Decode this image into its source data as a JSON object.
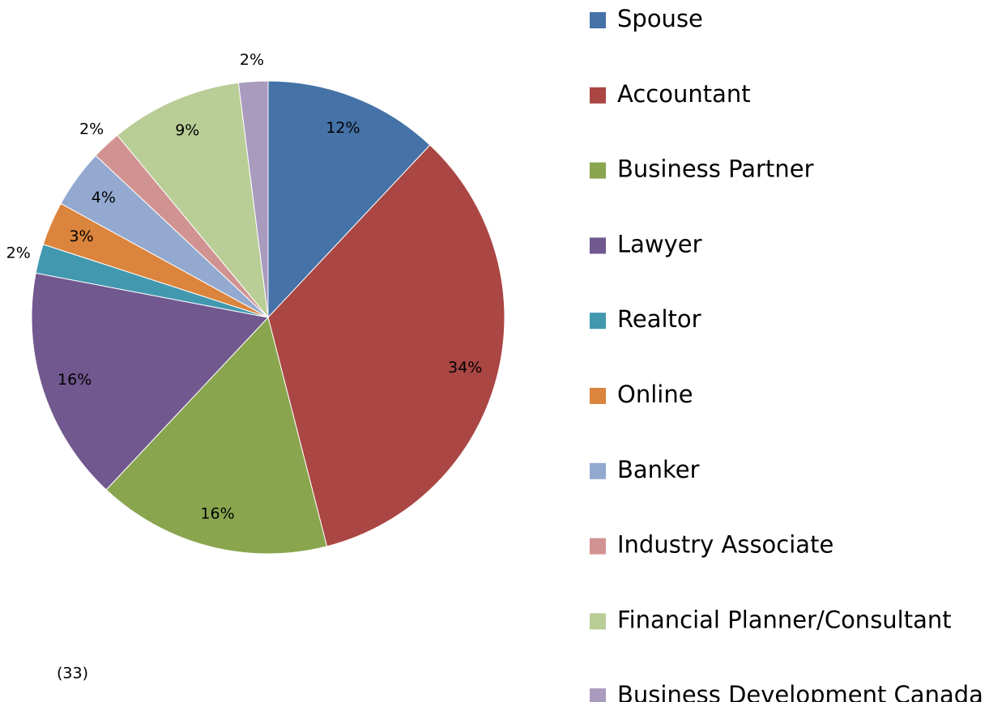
{
  "chart_data": {
    "type": "pie",
    "categories": [
      "Spouse",
      "Accountant",
      "Business Partner",
      "Lawyer",
      "Realtor",
      "Online",
      "Banker",
      "Industry Associate",
      "Financial Planner/Consultant",
      "Business Development Canada"
    ],
    "values": [
      12,
      34,
      16,
      16,
      2,
      3,
      4,
      2,
      9,
      2
    ],
    "value_labels": [
      "12%",
      "34%",
      "16%",
      "16%",
      "2%",
      "3%",
      "4%",
      "2%",
      "9%",
      "2%"
    ],
    "colors": [
      "#4572a7",
      "#aa4643",
      "#89a54e",
      "#71588f",
      "#4198af",
      "#db843d",
      "#93a9cf",
      "#d19392",
      "#b9cd96",
      "#a99bbd"
    ],
    "legend": "right",
    "annotation": "(33)"
  }
}
